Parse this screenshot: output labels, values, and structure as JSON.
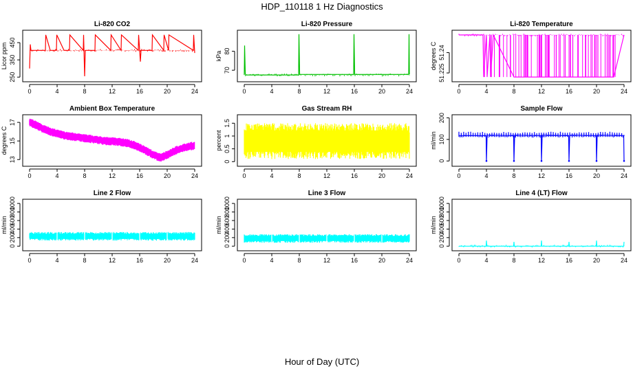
{
  "figure": {
    "title": "HDP_110118  1 Hz Diagnostics",
    "xlabel": "Hour of Day (UTC)"
  },
  "chart_data": [
    {
      "type": "line",
      "title": "Li-820 CO2",
      "ylabel": "Licor ppm",
      "color": "#ff0000",
      "xlim": [
        0,
        24
      ],
      "ylim": [
        235,
        510
      ],
      "xticks": [
        "0",
        "4",
        "8",
        "12",
        "16",
        "20",
        "24"
      ],
      "yticks": [
        250,
        350,
        450
      ],
      "baseline": 405,
      "series": [
        {
          "name": "CO2",
          "x": [
            0,
            0.1,
            0.2,
            1,
            2.3,
            2.35,
            3,
            3.9,
            3.95,
            5,
            5.8,
            5.85,
            7.8,
            7.85,
            8.0,
            8.1,
            9.5,
            9.55,
            11.8,
            11.85,
            13.3,
            13.35,
            15.8,
            15.85,
            16.1,
            16.2,
            17.8,
            17.85,
            19.5,
            19.55,
            20.2,
            20.25,
            23.8,
            23.85,
            24
          ],
          "y": [
            300,
            440,
            405,
            405,
            405,
            495,
            405,
            405,
            495,
            405,
            405,
            495,
            405,
            495,
            255,
            405,
            405,
            495,
            405,
            495,
            405,
            495,
            405,
            495,
            340,
            405,
            405,
            495,
            405,
            495,
            405,
            495,
            405,
            495,
            390
          ]
        }
      ]
    },
    {
      "type": "line",
      "title": "Li-820 Pressure",
      "ylabel": "kPa",
      "color": "#00c000",
      "xlim": [
        0,
        24
      ],
      "ylim": [
        65,
        90
      ],
      "xticks": [
        "0",
        "4",
        "8",
        "12",
        "16",
        "20",
        "24"
      ],
      "yticks": [
        70,
        80
      ],
      "baseline": 67.5,
      "series": [
        {
          "name": "Pressure",
          "x": [
            0,
            0.05,
            0.15,
            0.3,
            4,
            7.9,
            7.95,
            8.05,
            12,
            15.9,
            15.95,
            16.05,
            20,
            23.9,
            23.95,
            24
          ],
          "y": [
            67.5,
            83,
            68,
            67.5,
            67.5,
            67.5,
            89,
            67.8,
            67.8,
            67.8,
            89,
            67.8,
            67.8,
            67.8,
            89,
            67.8
          ]
        }
      ]
    },
    {
      "type": "line",
      "title": "Li-820 Temperature",
      "ylabel": "degrees C",
      "color": "#ff00ff",
      "xlim": [
        0,
        24
      ],
      "ylim": [
        51.22,
        51.255
      ],
      "xticks": [
        "0",
        "4",
        "8",
        "12",
        "16",
        "20",
        "24"
      ],
      "yticks": [
        51.225,
        51.24
      ],
      "baseline": 51.253,
      "series": [
        {
          "name": "Temperature",
          "x": [
            0,
            3.5,
            3.6,
            4.0,
            4.1,
            4.5,
            4.6,
            5.0,
            8.0,
            9.5,
            10.5,
            11.5,
            12.0,
            13.5,
            14.5,
            15.0,
            16.0,
            17.0,
            18.0,
            19.0,
            20.0,
            21.0,
            22.5,
            24
          ],
          "y": [
            51.253,
            51.253,
            51.222,
            51.253,
            51.222,
            51.253,
            51.222,
            51.253,
            51.222,
            51.222,
            51.222,
            51.222,
            51.222,
            51.222,
            51.222,
            51.222,
            51.222,
            51.222,
            51.222,
            51.222,
            51.222,
            51.222,
            51.222,
            51.253
          ]
        }
      ]
    },
    {
      "type": "line",
      "title": "Ambient Box Temperature",
      "ylabel": "degrees C",
      "color": "#ff00ff",
      "xlim": [
        0,
        24
      ],
      "ylim": [
        12.5,
        17.6
      ],
      "xticks": [
        "0",
        "4",
        "8",
        "12",
        "16",
        "20",
        "24"
      ],
      "yticks": [
        13,
        15,
        17
      ],
      "series": [
        {
          "name": "Ambient",
          "x": [
            0,
            1,
            2,
            3,
            4,
            5,
            6,
            7,
            8,
            9,
            10,
            11,
            12,
            13,
            14,
            15,
            16,
            17,
            18,
            19,
            20,
            21,
            22,
            23,
            24
          ],
          "y": [
            17.0,
            16.7,
            16.3,
            16.0,
            15.8,
            15.6,
            15.5,
            15.4,
            15.3,
            15.2,
            15.1,
            15.0,
            14.95,
            14.9,
            14.8,
            14.6,
            14.3,
            13.9,
            13.5,
            13.2,
            13.5,
            13.9,
            14.2,
            14.4,
            14.5
          ]
        }
      ]
    },
    {
      "type": "area",
      "title": "Gas Stream RH",
      "ylabel": "percent",
      "color": "#ffff00",
      "xlim": [
        0,
        24
      ],
      "ylim": [
        -0.1,
        1.75
      ],
      "xticks": [
        "0",
        "4",
        "8",
        "12",
        "16",
        "20",
        "24"
      ],
      "yticks": [
        0.0,
        0.5,
        1.0,
        1.5
      ],
      "series": [
        {
          "name": "RH",
          "x": [
            0,
            24
          ],
          "low": [
            0.1,
            0.1
          ],
          "high": [
            1.5,
            1.5
          ]
        }
      ]
    },
    {
      "type": "line",
      "title": "Sample Flow",
      "ylabel": "ml/min",
      "color": "#0000ff",
      "xlim": [
        0,
        24
      ],
      "ylim": [
        -15,
        205
      ],
      "xticks": [
        "0",
        "4",
        "8",
        "12",
        "16",
        "20",
        "24"
      ],
      "yticks": [
        0,
        100,
        200
      ],
      "baseline": 115,
      "series": [
        {
          "name": "Sample Flow",
          "x": [
            0,
            3.95,
            4.0,
            4.1,
            7.95,
            8.0,
            8.1,
            11.95,
            12.0,
            12.1,
            15.95,
            16.0,
            16.1,
            19.95,
            20.0,
            20.1,
            23.95,
            24.0
          ],
          "y": [
            118,
            118,
            0,
            120,
            118,
            0,
            120,
            118,
            0,
            120,
            118,
            0,
            120,
            118,
            0,
            120,
            118,
            0
          ]
        }
      ]
    },
    {
      "type": "area",
      "title": "Line 2 Flow",
      "ylabel": "ml/min",
      "color": "#00ffff",
      "xlim": [
        0,
        24
      ],
      "ylim": [
        -60,
        1050
      ],
      "xticks": [
        "0",
        "4",
        "8",
        "12",
        "16",
        "20",
        "24"
      ],
      "yticks": [
        0,
        200,
        400,
        600,
        800,
        1000
      ],
      "series": [
        {
          "name": "Line 2",
          "x": [
            0,
            24
          ],
          "low": [
            130,
            130
          ],
          "high": [
            330,
            330
          ]
        }
      ]
    },
    {
      "type": "area",
      "title": "Line 3 Flow",
      "ylabel": "ml/min",
      "color": "#00ffff",
      "xlim": [
        0,
        24
      ],
      "ylim": [
        -60,
        1050
      ],
      "xticks": [
        "0",
        "4",
        "8",
        "12",
        "16",
        "20",
        "24"
      ],
      "yticks": [
        0,
        200,
        400,
        600,
        800,
        1000
      ],
      "series": [
        {
          "name": "Line 3",
          "x": [
            0,
            24
          ],
          "low": [
            80,
            80
          ],
          "high": [
            280,
            280
          ]
        }
      ]
    },
    {
      "type": "line",
      "title": "Line 4 (LT) Flow",
      "ylabel": "ml/min",
      "color": "#00ffff",
      "xlim": [
        0,
        24
      ],
      "ylim": [
        -60,
        1050
      ],
      "xticks": [
        "0",
        "4",
        "8",
        "12",
        "16",
        "20",
        "24"
      ],
      "yticks": [
        0,
        200,
        400,
        600,
        800,
        1000
      ],
      "baseline": 0,
      "series": [
        {
          "name": "Line 4",
          "x": [
            0,
            3.95,
            4.0,
            4.05,
            7.95,
            8.0,
            8.05,
            11.95,
            12.0,
            12.05,
            15.95,
            16.0,
            16.05,
            19.95,
            20.0,
            20.05,
            23.95,
            24.0
          ],
          "y": [
            0,
            0,
            130,
            0,
            0,
            100,
            0,
            0,
            130,
            0,
            0,
            100,
            0,
            0,
            130,
            0,
            0,
            100
          ]
        }
      ]
    }
  ]
}
